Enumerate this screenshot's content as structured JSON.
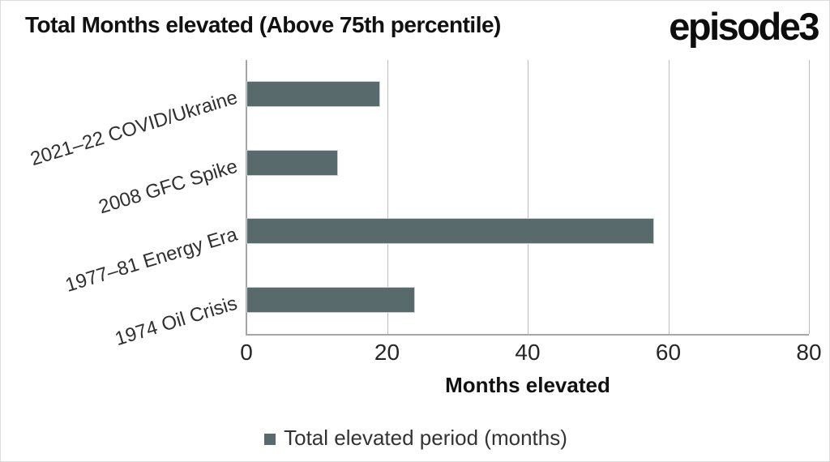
{
  "header": {
    "title": "Total Months elevated (Above 75th percentile)",
    "logo": "episode3"
  },
  "legend": {
    "label": "Total elevated period (months)"
  },
  "colors": {
    "bar": "#586a6b",
    "bar_border": "#ccd2d2",
    "gridline": "#bdbdbd",
    "axis": "#a6a6a6",
    "title_text": "#111111",
    "tick_text": "#262626",
    "category_text": "#2f2f2f",
    "legend_text": "#333333"
  },
  "chart_data": {
    "type": "bar",
    "orientation": "horizontal",
    "title": "Total Months elevated (Above 75th percentile)",
    "categories": [
      "2021–22 COVID/Ukraine",
      "2008 GFC Spike",
      "1977–81 Energy Era",
      "1974 Oil Crisis"
    ],
    "series": [
      {
        "name": "Total elevated period (months)",
        "values": [
          19,
          13,
          58,
          24
        ]
      }
    ],
    "xlabel": "Months elevated",
    "xlim": [
      0,
      80
    ],
    "xticks": [
      0,
      20,
      40,
      60,
      80
    ],
    "grid": "vertical-gridlines",
    "legend_position": "bottom-center"
  }
}
